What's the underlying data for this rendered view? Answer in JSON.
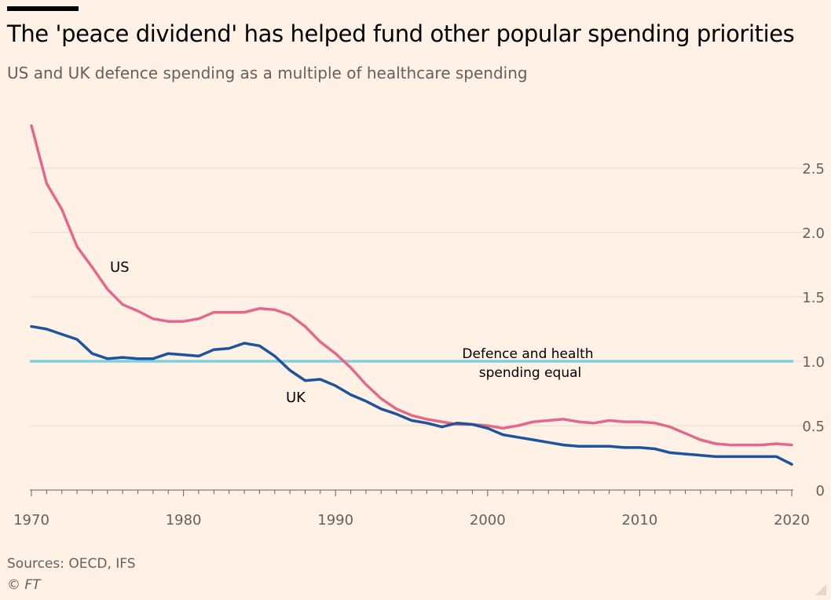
{
  "title": "The 'peace dividend' has helped fund other popular spending priorities",
  "subtitle": "US and UK defence spending as a multiple of healthcare spending",
  "source": "Sources: OECD, IFS",
  "copyright": "© FT",
  "chart_data": {
    "type": "line",
    "x": [
      1970,
      1971,
      1972,
      1973,
      1974,
      1975,
      1976,
      1977,
      1978,
      1979,
      1980,
      1981,
      1982,
      1983,
      1984,
      1985,
      1986,
      1987,
      1988,
      1989,
      1990,
      1991,
      1992,
      1993,
      1994,
      1995,
      1996,
      1997,
      1998,
      1999,
      2000,
      2001,
      2002,
      2003,
      2004,
      2005,
      2006,
      2007,
      2008,
      2009,
      2010,
      2011,
      2012,
      2013,
      2014,
      2015,
      2016,
      2017,
      2018,
      2019,
      2020
    ],
    "series": [
      {
        "name": "US",
        "color": "#E3698B",
        "values": [
          2.83,
          2.38,
          2.18,
          1.89,
          1.73,
          1.56,
          1.44,
          1.39,
          1.33,
          1.31,
          1.31,
          1.33,
          1.38,
          1.38,
          1.38,
          1.41,
          1.4,
          1.36,
          1.27,
          1.15,
          1.06,
          0.95,
          0.82,
          0.71,
          0.63,
          0.58,
          0.55,
          0.53,
          0.51,
          0.51,
          0.5,
          0.48,
          0.5,
          0.53,
          0.54,
          0.55,
          0.53,
          0.52,
          0.54,
          0.53,
          0.53,
          0.52,
          0.49,
          0.44,
          0.39,
          0.36,
          0.35,
          0.35,
          0.35,
          0.36,
          0.35
        ]
      },
      {
        "name": "UK",
        "color": "#1D549B",
        "values": [
          1.27,
          1.25,
          1.21,
          1.17,
          1.06,
          1.02,
          1.03,
          1.02,
          1.02,
          1.06,
          1.05,
          1.04,
          1.09,
          1.1,
          1.14,
          1.12,
          1.04,
          0.93,
          0.85,
          0.86,
          0.81,
          0.74,
          0.69,
          0.63,
          0.59,
          0.54,
          0.52,
          0.49,
          0.52,
          0.51,
          0.48,
          0.43,
          0.41,
          0.39,
          0.37,
          0.35,
          0.34,
          0.34,
          0.34,
          0.33,
          0.33,
          0.32,
          0.29,
          0.28,
          0.27,
          0.26,
          0.26,
          0.26,
          0.26,
          0.26,
          0.2
        ]
      }
    ],
    "reference_line": {
      "value": 1.0,
      "label_line1": "Defence and health",
      "label_line2": "spending equal",
      "color": "#7ED1DC"
    },
    "xlim": [
      1970,
      2020
    ],
    "ylim": [
      0,
      2.85
    ],
    "xticks": [
      1970,
      1971,
      1972,
      1973,
      1974,
      1975,
      1976,
      1977,
      1978,
      1979,
      1980,
      1981,
      1982,
      1983,
      1984,
      1985,
      1986,
      1987,
      1988,
      1989,
      1990,
      1991,
      1992,
      1993,
      1994,
      1995,
      1996,
      1997,
      1998,
      1999,
      2000,
      2001,
      2002,
      2003,
      2004,
      2005,
      2006,
      2007,
      2008,
      2009,
      2010,
      2011,
      2012,
      2013,
      2014,
      2015,
      2016,
      2017,
      2018,
      2019,
      2020
    ],
    "xtick_labels": [
      "1970",
      "1980",
      "1990",
      "2000",
      "2010",
      "2020"
    ],
    "yticks": [
      0,
      0.5,
      1.0,
      1.5,
      2.0,
      2.5
    ],
    "ytick_labels": [
      "0",
      "0.5",
      "1.0",
      "1.5",
      "2.0",
      "2.5"
    ],
    "y_axis_side": "right",
    "grid": "horizontal",
    "legend": "direct labels",
    "series_labels": [
      "US",
      "UK"
    ]
  }
}
